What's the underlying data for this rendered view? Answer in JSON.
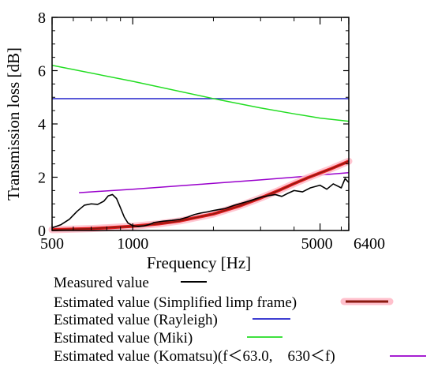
{
  "chart_data": {
    "type": "line",
    "title": "",
    "xlabel": "Frequency [Hz]",
    "ylabel": "Transmission loss [dB]",
    "x_scale": "log",
    "xlim": [
      500,
      6400
    ],
    "ylim": [
      0,
      8
    ],
    "x_ticks": [
      500,
      1000,
      5000,
      6400
    ],
    "x_tick_labels": [
      "500",
      "1000",
      "5000",
      "6400"
    ],
    "y_ticks": [
      0,
      2,
      4,
      6,
      8
    ],
    "y_tick_labels": [
      "0",
      "2",
      "4",
      "6",
      "8"
    ],
    "grid": false,
    "legend_position": "bottom",
    "series": [
      {
        "name": "Measured value",
        "color": "#000000",
        "x": [
          500,
          540,
          580,
          620,
          660,
          700,
          740,
          780,
          810,
          840,
          870,
          900,
          930,
          960,
          1000,
          1050,
          1100,
          1150,
          1200,
          1300,
          1400,
          1500,
          1600,
          1700,
          1800,
          1900,
          2000,
          2200,
          2400,
          2600,
          2800,
          3000,
          3200,
          3400,
          3600,
          3800,
          4000,
          4300,
          4600,
          5000,
          5300,
          5600,
          6000,
          6200,
          6400
        ],
        "y": [
          0.1,
          0.22,
          0.42,
          0.72,
          0.95,
          1.0,
          0.98,
          1.1,
          1.3,
          1.35,
          1.2,
          0.85,
          0.5,
          0.28,
          0.18,
          0.15,
          0.17,
          0.22,
          0.3,
          0.35,
          0.38,
          0.42,
          0.5,
          0.6,
          0.66,
          0.7,
          0.75,
          0.82,
          0.95,
          1.05,
          1.15,
          1.25,
          1.3,
          1.35,
          1.28,
          1.4,
          1.5,
          1.45,
          1.6,
          1.7,
          1.55,
          1.75,
          1.6,
          1.95,
          1.8
        ]
      },
      {
        "name": "Estimated value (Simplified limp frame)",
        "color": "#e31a1c",
        "inner_color": "#8b1a10",
        "x": [
          500,
          600,
          700,
          800,
          1000,
          1250,
          1500,
          2000,
          2500,
          3000,
          3500,
          4000,
          4500,
          5000,
          5500,
          6000,
          6400
        ],
        "y": [
          0.03,
          0.05,
          0.07,
          0.1,
          0.16,
          0.25,
          0.36,
          0.62,
          0.92,
          1.22,
          1.5,
          1.76,
          1.98,
          2.16,
          2.32,
          2.48,
          2.6
        ]
      },
      {
        "name": "Estimated value (Rayleigh)",
        "color": "#2222cc",
        "x": [
          500,
          6400
        ],
        "y": [
          4.95,
          4.95
        ]
      },
      {
        "name": "Estimated value (Miki)",
        "color": "#22dd22",
        "x": [
          500,
          1000,
          2000,
          3000,
          4000,
          5000,
          6400
        ],
        "y": [
          6.2,
          5.6,
          4.95,
          4.6,
          4.38,
          4.22,
          4.1
        ]
      },
      {
        "name": "Estimated value (Komatsu)(f＜63.0,　630＜f)",
        "color": "#9900cc",
        "x": [
          630,
          1000,
          2000,
          3000,
          4000,
          5000,
          6400
        ],
        "y": [
          1.42,
          1.55,
          1.77,
          1.9,
          2.0,
          2.08,
          2.17
        ]
      }
    ]
  }
}
